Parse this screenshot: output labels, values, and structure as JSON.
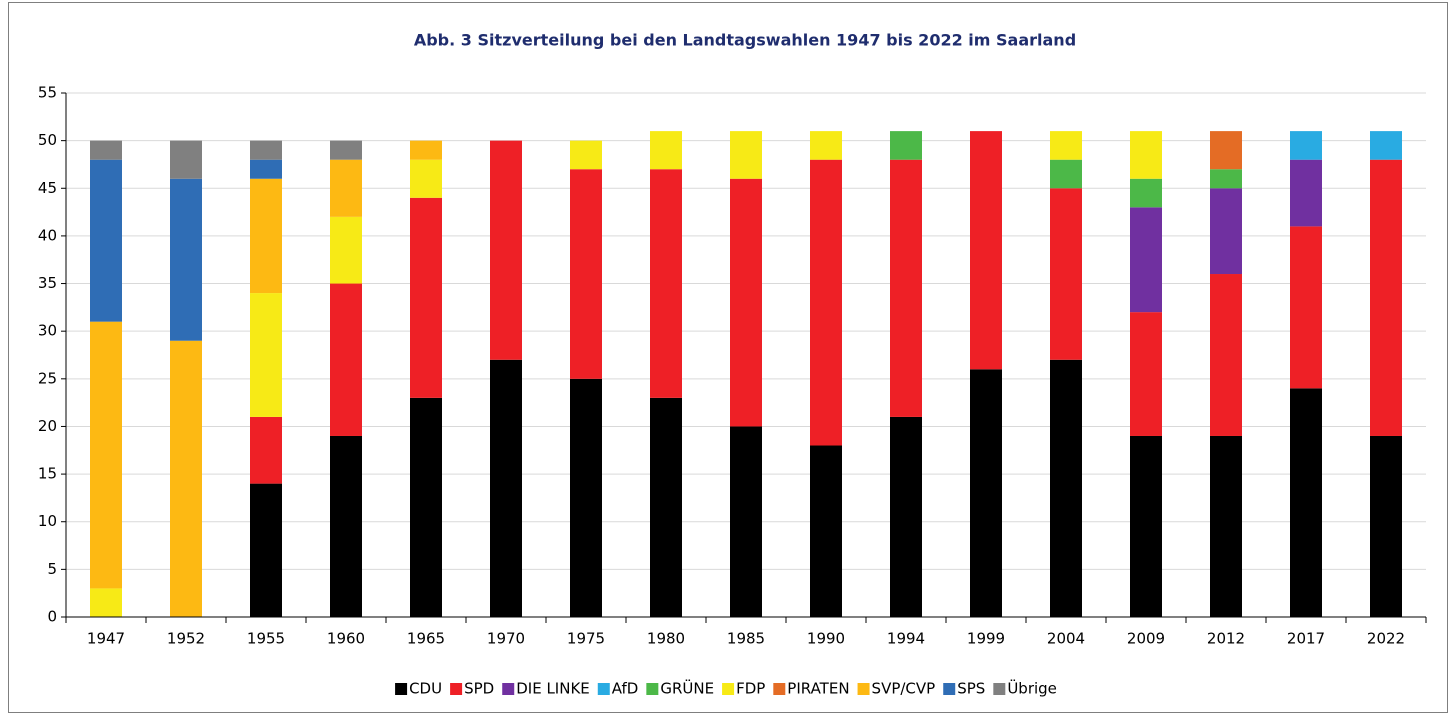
{
  "chart_data": {
    "type": "bar",
    "stacked": true,
    "title": "Abb. 3 Sitzverteilung bei den Landtagswahlen 1947 bis 2022 im Saarland",
    "categories": [
      "1947",
      "1952",
      "1955",
      "1960",
      "1965",
      "1970",
      "1975",
      "1980",
      "1985",
      "1990",
      "1994",
      "1999",
      "2004",
      "2009",
      "2012",
      "2017",
      "2022"
    ],
    "series": [
      {
        "name": "CDU",
        "color": "#000000",
        "values": [
          0,
          0,
          14,
          19,
          23,
          27,
          25,
          23,
          20,
          18,
          21,
          26,
          27,
          19,
          19,
          24,
          19
        ]
      },
      {
        "name": "SPD",
        "color": "#ee2026",
        "values": [
          0,
          0,
          7,
          16,
          21,
          23,
          22,
          24,
          26,
          30,
          27,
          25,
          18,
          13,
          17,
          17,
          29
        ]
      },
      {
        "name": "DIE LINKE",
        "color": "#7030a0",
        "values": [
          0,
          0,
          0,
          0,
          0,
          0,
          0,
          0,
          0,
          0,
          0,
          0,
          0,
          11,
          9,
          7,
          0
        ]
      },
      {
        "name": "AfD",
        "color": "#29abe2",
        "values": [
          0,
          0,
          0,
          0,
          0,
          0,
          0,
          0,
          0,
          0,
          0,
          0,
          0,
          0,
          0,
          3,
          3
        ]
      },
      {
        "name": "GRÜNE",
        "color": "#4cb848",
        "values": [
          0,
          0,
          0,
          0,
          0,
          0,
          0,
          0,
          0,
          0,
          3,
          0,
          3,
          3,
          2,
          0,
          0
        ]
      },
      {
        "name": "FDP",
        "color": "#f7ea16",
        "values": [
          3,
          0,
          13,
          7,
          4,
          0,
          3,
          4,
          5,
          3,
          0,
          0,
          3,
          5,
          0,
          0,
          0
        ]
      },
      {
        "name": "PIRATEN",
        "color": "#e46c25",
        "values": [
          0,
          0,
          0,
          0,
          0,
          0,
          0,
          0,
          0,
          0,
          0,
          0,
          0,
          0,
          4,
          0,
          0
        ]
      },
      {
        "name": "SVP/CVP",
        "color": "#fdb913",
        "values": [
          28,
          29,
          12,
          6,
          2,
          0,
          0,
          0,
          0,
          0,
          0,
          0,
          0,
          0,
          0,
          0,
          0
        ]
      },
      {
        "name": "SPS",
        "color": "#2f6db5",
        "values": [
          17,
          17,
          2,
          0,
          0,
          0,
          0,
          0,
          0,
          0,
          0,
          0,
          0,
          0,
          0,
          0,
          0
        ]
      },
      {
        "name": "Übrige",
        "color": "#808080",
        "values": [
          2,
          4,
          2,
          2,
          0,
          0,
          0,
          0,
          0,
          0,
          0,
          0,
          0,
          0,
          0,
          0,
          0
        ]
      }
    ],
    "ylim": [
      0,
      55
    ],
    "yticks": [
      0,
      5,
      10,
      15,
      20,
      25,
      30,
      35,
      40,
      45,
      50,
      55
    ],
    "grid": true,
    "legend": "bottom"
  }
}
